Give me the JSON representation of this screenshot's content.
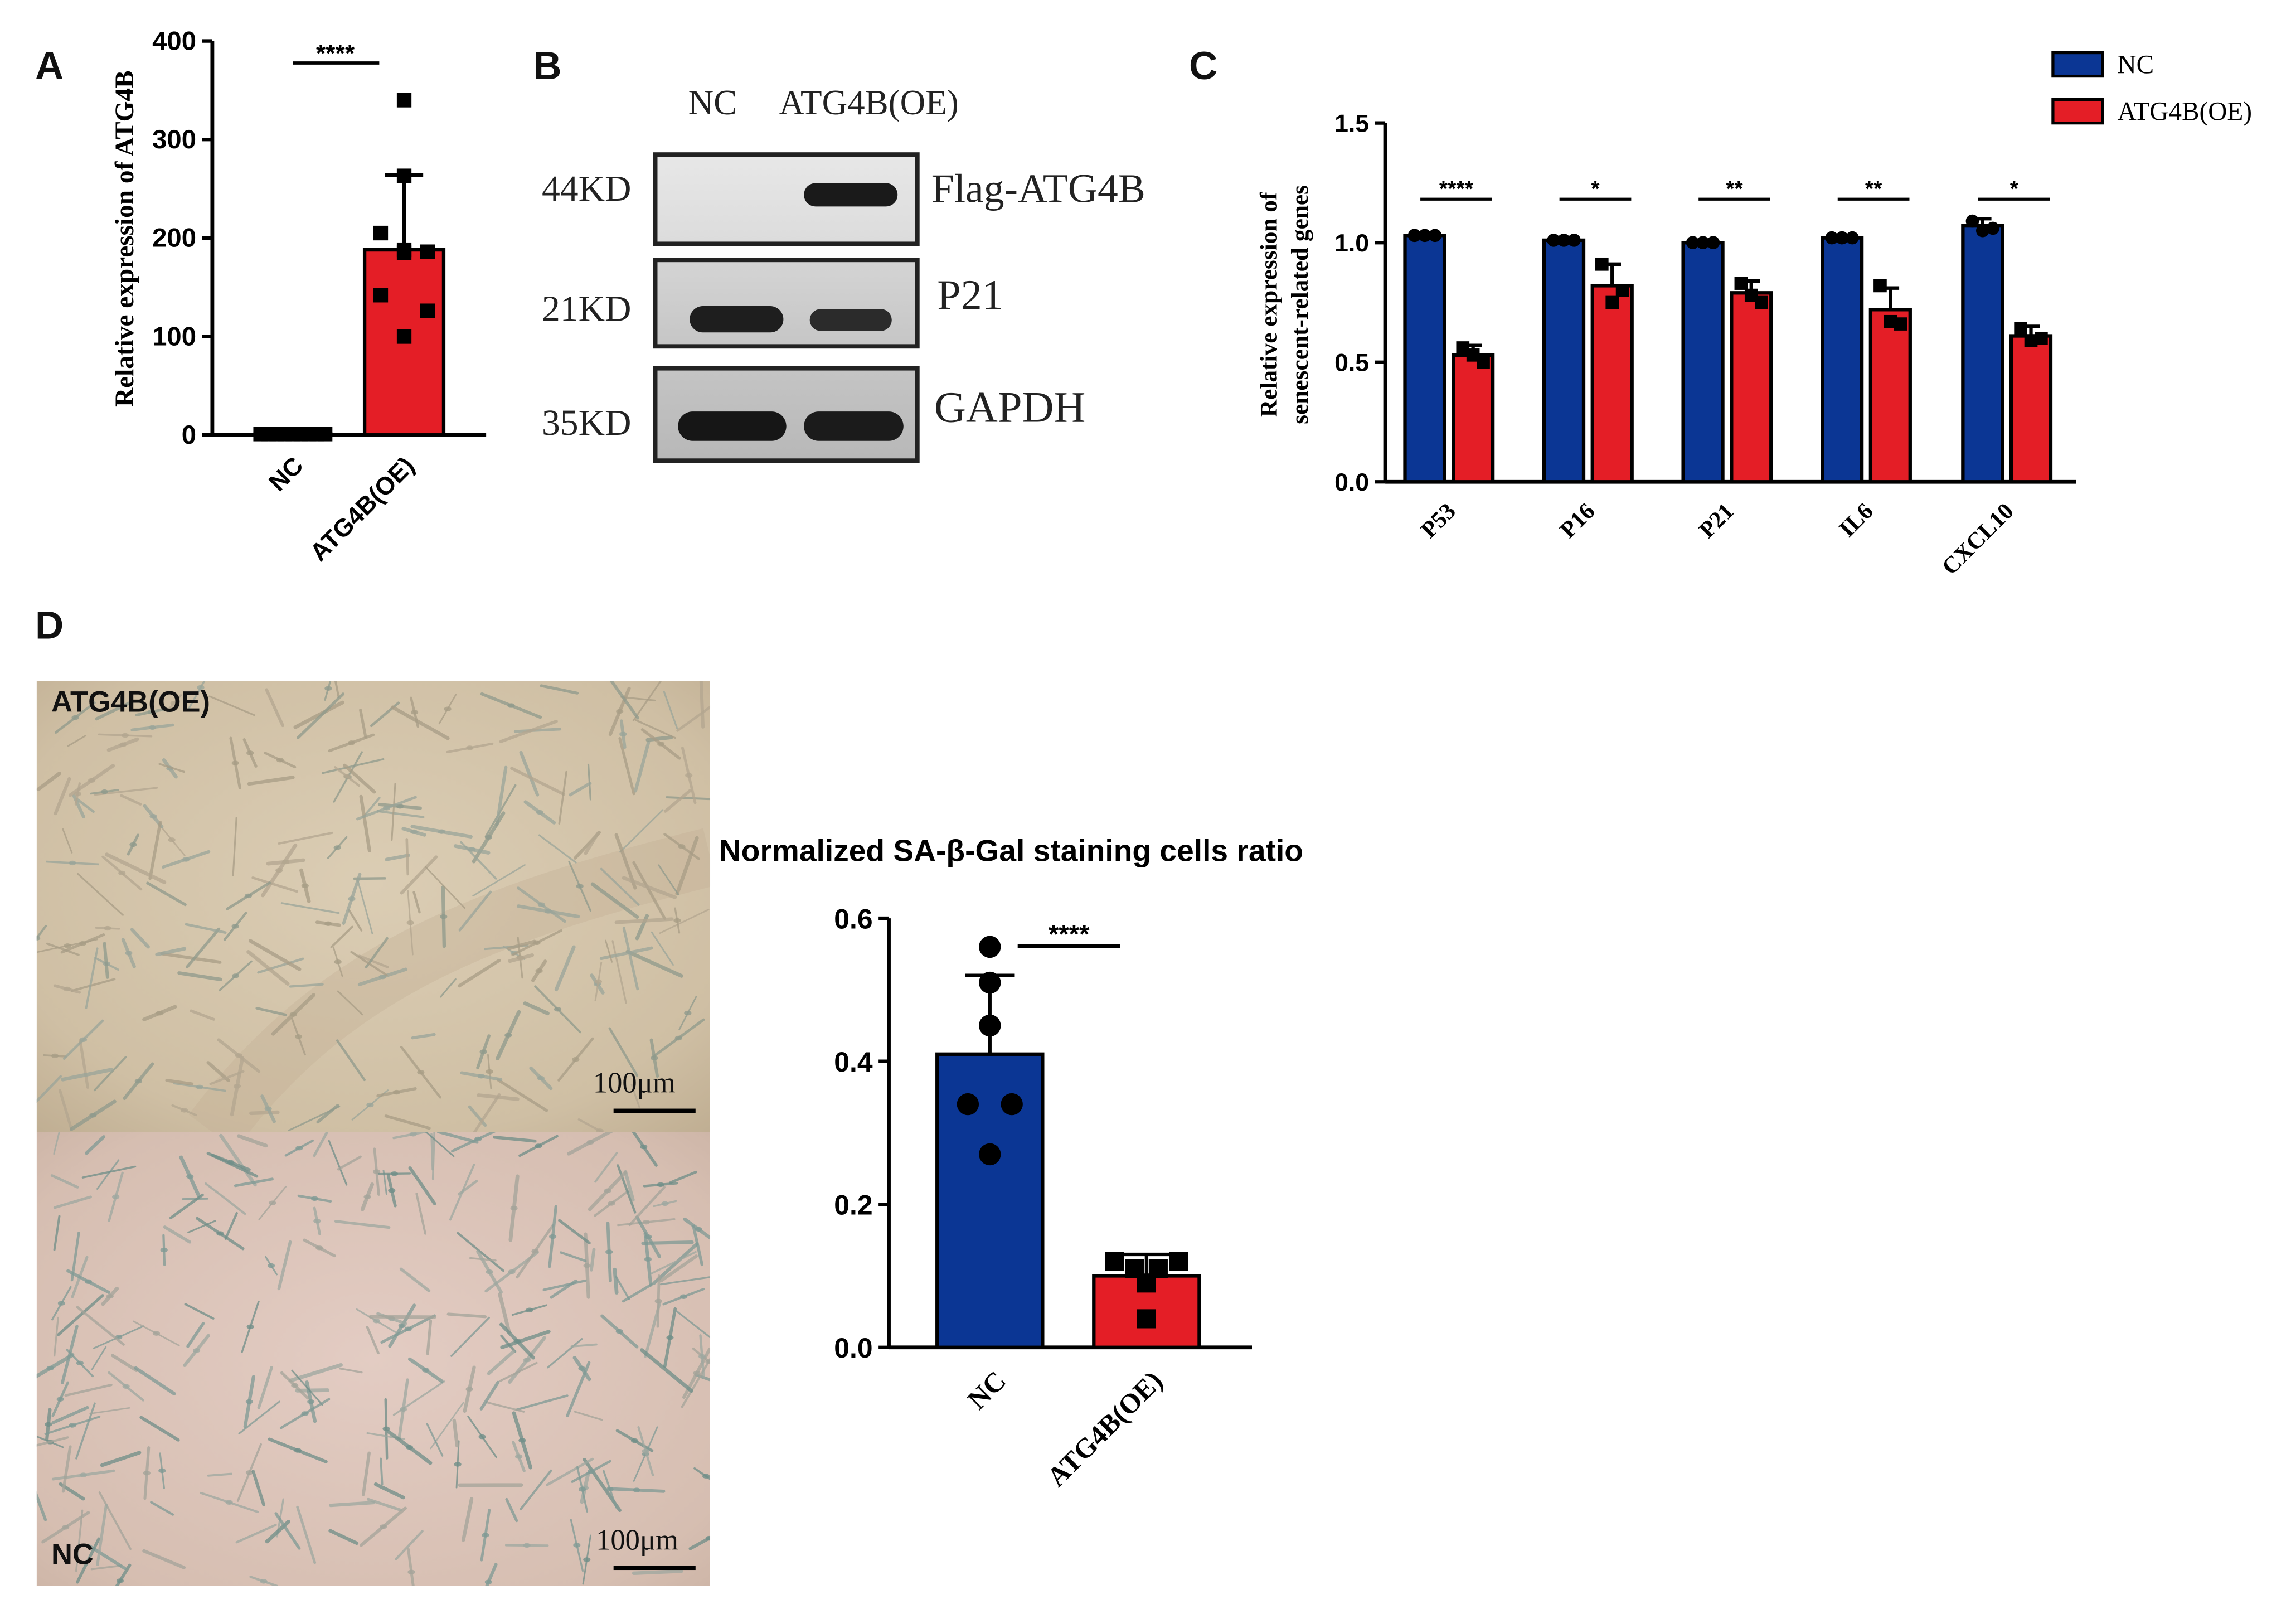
{
  "panels": {
    "a": "A",
    "b": "B",
    "c": "C",
    "d": "D"
  },
  "colors": {
    "nc": "#0b3694",
    "oe": "#e41e26",
    "axis": "#000000"
  },
  "chart_data": [
    {
      "id": "A",
      "type": "bar",
      "ylabel": "Relative expression of ATG4B",
      "categories": [
        "NC",
        "ATG4B(OE)"
      ],
      "values": [
        1,
        188
      ],
      "errors": [
        0.5,
        76
      ],
      "points": [
        [
          1,
          1,
          1,
          1,
          1,
          1,
          1,
          1,
          1
        ],
        [
          340,
          263,
          205,
          188,
          186,
          185,
          142,
          126,
          100
        ]
      ],
      "yticks": [
        0,
        100,
        200,
        300,
        400
      ],
      "ylim": [
        0,
        400
      ],
      "colors": [
        "#0b3694",
        "#e41e26"
      ],
      "significance": "****"
    },
    {
      "id": "C",
      "type": "bar",
      "ylabel": [
        "Relative expression of",
        "senescent-related genes"
      ],
      "categories": [
        "P53",
        "P16",
        "P21",
        "IL6",
        "CXCL10"
      ],
      "series": [
        {
          "name": "NC",
          "color": "#0b3694",
          "values": [
            1.03,
            1.01,
            1.0,
            1.02,
            1.07
          ],
          "errors": [
            0.01,
            0.01,
            0.01,
            0.01,
            0.03
          ],
          "points": [
            [
              1.03,
              1.03,
              1.03
            ],
            [
              1.01,
              1.01,
              1.01
            ],
            [
              1.0,
              1.0,
              1.0
            ],
            [
              1.02,
              1.02,
              1.02
            ],
            [
              1.09,
              1.05,
              1.06
            ]
          ]
        },
        {
          "name": "ATG4B(OE)",
          "color": "#e41e26",
          "values": [
            0.53,
            0.82,
            0.79,
            0.72,
            0.61
          ],
          "errors": [
            0.04,
            0.09,
            0.05,
            0.09,
            0.04
          ],
          "points": [
            [
              0.56,
              0.53,
              0.5
            ],
            [
              0.91,
              0.75,
              0.8
            ],
            [
              0.83,
              0.78,
              0.75
            ],
            [
              0.82,
              0.67,
              0.66
            ],
            [
              0.64,
              0.59,
              0.6
            ]
          ]
        }
      ],
      "significance": [
        "****",
        "*",
        "**",
        "**",
        "*"
      ],
      "yticks": [
        "0.0",
        "0.5",
        "1.0",
        "1.5"
      ],
      "ylim": [
        0,
        1.5
      ],
      "legend": "top-right"
    },
    {
      "id": "D",
      "type": "bar",
      "title": "Normalized SA-β-Gal staining cells ratio",
      "categories": [
        "NC",
        "ATG4B(OE)"
      ],
      "values": [
        0.41,
        0.1
      ],
      "errors": [
        0.11,
        0.03
      ],
      "points": [
        [
          0.56,
          0.51,
          0.45,
          0.34,
          0.34,
          0.27
        ],
        [
          0.12,
          0.12,
          0.11,
          0.11,
          0.09,
          0.04
        ]
      ],
      "markers": [
        "circle",
        "square"
      ],
      "yticks": [
        "0.0",
        "0.2",
        "0.4",
        "0.6"
      ],
      "ylim": [
        0,
        0.6
      ],
      "colors": [
        "#0b3694",
        "#e41e26"
      ],
      "significance": "****"
    }
  ],
  "blot": {
    "lanes": [
      "NC",
      "ATG4B(OE)"
    ],
    "rows": [
      {
        "size": "44KD",
        "name": "Flag-ATG4B"
      },
      {
        "size": "21KD",
        "name": "P21"
      },
      {
        "size": "35KD",
        "name": "GAPDH"
      }
    ]
  },
  "micro": {
    "top_label": "ATG4B(OE)",
    "bottom_label": "NC",
    "scale": "100μm"
  }
}
